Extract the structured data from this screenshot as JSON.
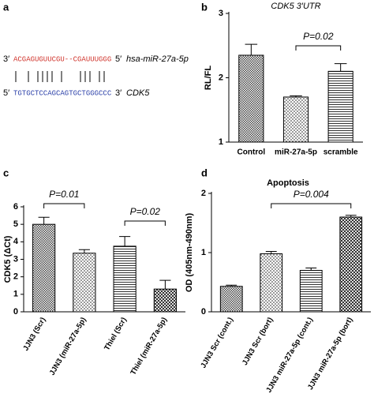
{
  "panel_a": {
    "label": "a",
    "mirna_prime_left": "3′",
    "mirna_seq": "ACGAGUGUUCGU--CGAUUUGGG",
    "mirna_prime_right": "5′",
    "mirna_name": "hsa-miR-27a-5p",
    "target_prime_left": "5′",
    "target_seq": "TGTGCTCCAGCAGTGCTGGGCCC",
    "target_prime_right": "3′",
    "target_name": "CDK5"
  },
  "chart_data": [
    {
      "type": "bar",
      "panel_label": "b",
      "title": "CDK5 3′UTR",
      "ylabel": "RL/FL",
      "categories": [
        "Control",
        "miR-27a-5p",
        "scramble"
      ],
      "values": [
        2.35,
        1.7,
        2.1
      ],
      "errors": [
        0.17,
        0.02,
        0.12
      ],
      "ylim": [
        1,
        3
      ],
      "yticks": [
        1,
        2,
        3
      ],
      "annotations": [
        "P=0.02"
      ]
    },
    {
      "type": "bar",
      "panel_label": "c",
      "ylabel": "CDK5 (ΔCt)",
      "categories": [
        "JJN3 (Scr)",
        "JJN3 (miR-27a-5p)",
        "Thiel (Scr)",
        "Thiel (miR-27a-5p)"
      ],
      "values": [
        5.0,
        3.35,
        3.75,
        1.3
      ],
      "errors": [
        0.4,
        0.2,
        0.55,
        0.5
      ],
      "ylim": [
        0,
        6
      ],
      "yticks": [
        0,
        1,
        2,
        3,
        4,
        5,
        6
      ],
      "annotations": [
        "P=0.01",
        "P=0.02"
      ]
    },
    {
      "type": "bar",
      "panel_label": "d",
      "title": "Apoptosis",
      "ylabel": "OD (405nm-490nm)",
      "categories": [
        "JJN3 Scr (cont.)",
        "JJN3 Scr (bort)",
        "JJN3 miR-27a-5p (cont.)",
        "JJN3 miR-27a-5p (bort)"
      ],
      "values": [
        0.43,
        0.98,
        0.7,
        1.6
      ],
      "errors": [
        0.02,
        0.04,
        0.04,
        0.03
      ],
      "ylim": [
        0,
        2
      ],
      "yticks": [
        0,
        1,
        2
      ],
      "annotations": [
        "P=0.004"
      ]
    }
  ]
}
